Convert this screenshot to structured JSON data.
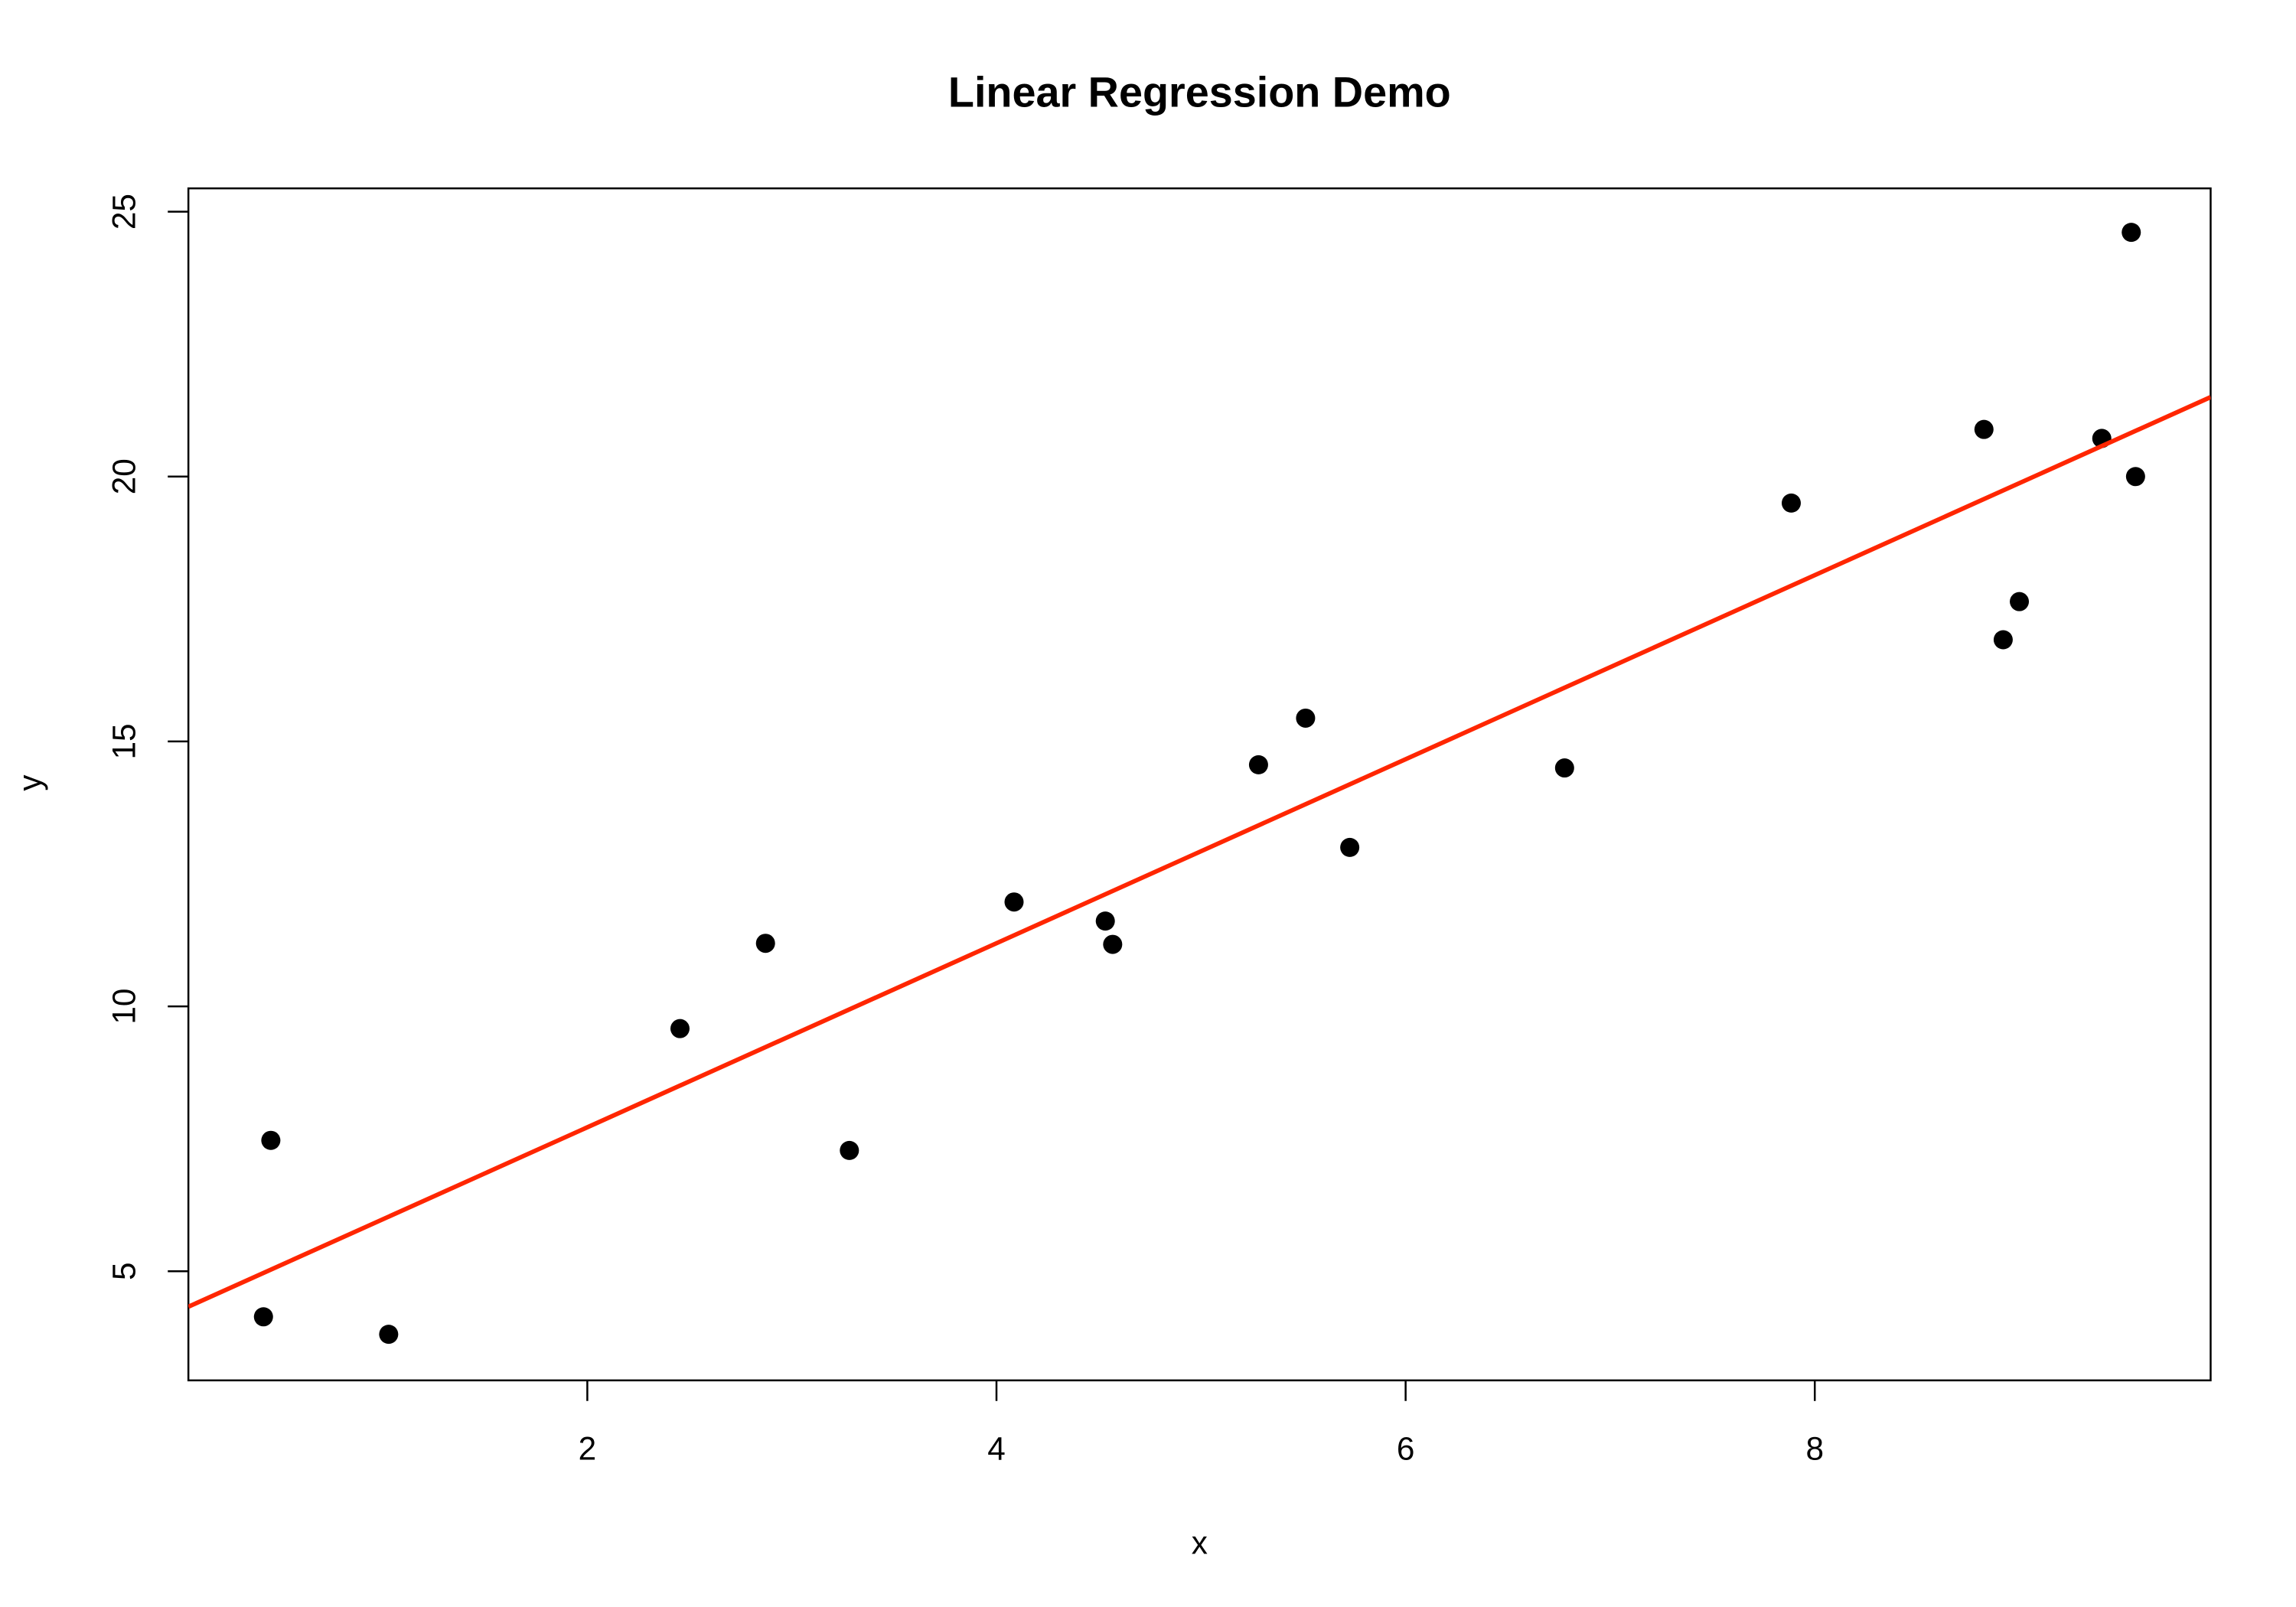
{
  "chart_data": {
    "type": "scatter",
    "title": "Linear Regression Demo",
    "x_label": "x",
    "y_label": "y",
    "x": [
      0.417,
      0.453,
      1.029,
      2.453,
      2.871,
      3.281,
      4.086,
      4.532,
      4.568,
      5.281,
      5.511,
      5.727,
      6.777,
      7.885,
      8.827,
      8.921,
      9.0,
      9.403,
      9.547,
      9.568
    ],
    "y": [
      4.14,
      7.47,
      3.81,
      9.58,
      11.19,
      7.28,
      11.97,
      11.61,
      11.17,
      14.56,
      15.44,
      13.0,
      14.5,
      19.5,
      20.89,
      16.92,
      17.64,
      20.72,
      24.61,
      20.0
    ],
    "color": "#000000",
    "fit": {
      "color": "#ff2600",
      "x": [
        0.05,
        9.935
      ],
      "y": [
        4.33,
        21.5
      ]
    },
    "xlim": [
      0.05,
      9.935
    ],
    "ylim": [
      2.94,
      25.44
    ],
    "xticks": [
      2,
      4,
      6,
      8
    ],
    "yticks": [
      5,
      10,
      15,
      20,
      25
    ]
  }
}
